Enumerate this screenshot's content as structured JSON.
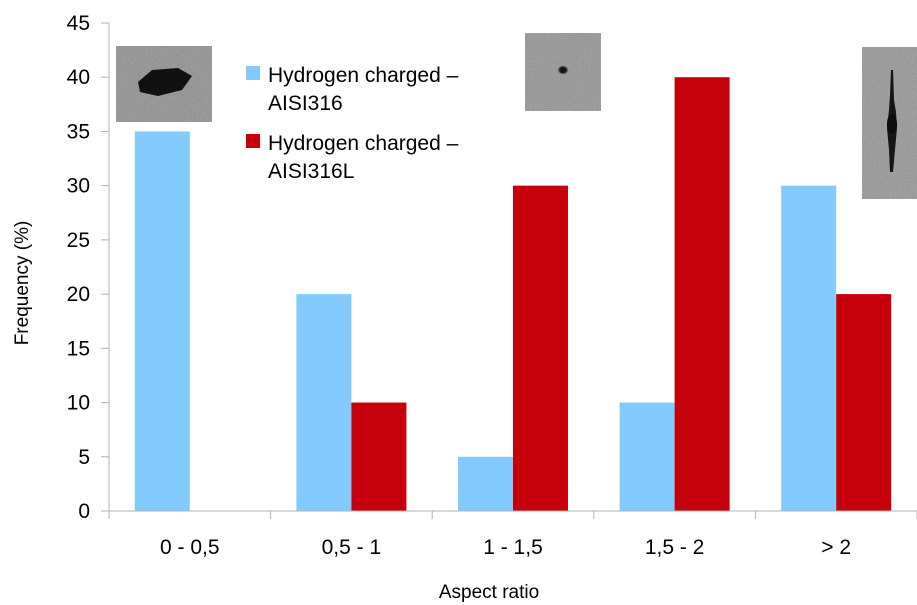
{
  "chart_data": {
    "type": "bar",
    "title": "",
    "xlabel": "Aspect ratio",
    "ylabel": "Frequency (%)",
    "categories": [
      "0 - 0,5",
      "0,5 - 1",
      "1 - 1,5",
      "1,5 - 2",
      "> 2"
    ],
    "ylim": [
      0,
      45
    ],
    "yticks": [
      0,
      5,
      10,
      15,
      20,
      25,
      30,
      35,
      40,
      45
    ],
    "grid": false,
    "legend_position": "top-left",
    "series": [
      {
        "name": "Hydrogen charged – AISI316",
        "legend_lines": [
          "Hydrogen charged –",
          "AISI316"
        ],
        "color": "#83caff",
        "values": [
          35,
          20,
          5,
          10,
          30
        ]
      },
      {
        "name": "Hydrogen charged – AISI316L",
        "legend_lines": [
          "Hydrogen charged –",
          "AISI316L"
        ],
        "color": "#c5000b",
        "values": [
          0,
          10,
          30,
          40,
          20
        ]
      }
    ],
    "insets": [
      {
        "name": "micrograph-flat-void",
        "depicts": "dark elongated void"
      },
      {
        "name": "micrograph-round-void",
        "depicts": "small round void"
      },
      {
        "name": "micrograph-elongated-void",
        "depicts": "long vertical void chain"
      }
    ]
  }
}
